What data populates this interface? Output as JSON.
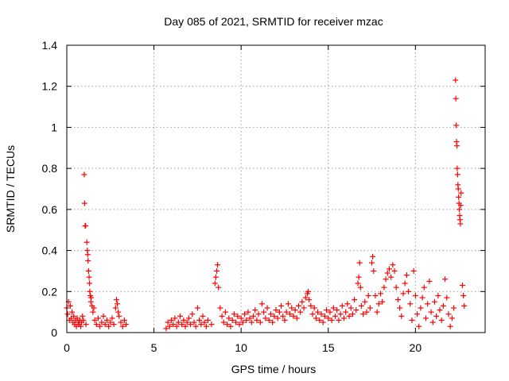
{
  "chart_data": {
    "type": "scatter",
    "title": "Day 085 of 2021, SRMTID for receiver mzac",
    "xlabel": "GPS time / hours",
    "ylabel": "SRMTID / TECUs",
    "xlim": [
      0,
      24
    ],
    "ylim": [
      0,
      1.4
    ],
    "xticks": [
      0,
      5,
      10,
      15,
      20
    ],
    "xtick_labels": [
      "0",
      "5",
      "10",
      "15",
      "20"
    ],
    "yticks": [
      0,
      0.2,
      0.4,
      0.6,
      0.8,
      1.0,
      1.2,
      1.4
    ],
    "ytick_labels": [
      "0",
      "0.2",
      "0.4",
      "0.6",
      "0.8",
      "1",
      "1.2",
      "1.4"
    ],
    "grid": true,
    "marker": "+",
    "colors": {
      "series": "#ff0000",
      "grid": "#a0a0a0",
      "axis": "#000000"
    },
    "series": [
      {
        "name": "SRMTID",
        "points": [
          [
            0.0,
            0.12
          ],
          [
            0.05,
            0.09
          ],
          [
            0.1,
            0.15
          ],
          [
            0.15,
            0.06
          ],
          [
            0.2,
            0.13
          ],
          [
            0.25,
            0.07
          ],
          [
            0.3,
            0.1
          ],
          [
            0.35,
            0.05
          ],
          [
            0.4,
            0.08
          ],
          [
            0.45,
            0.04
          ],
          [
            0.5,
            0.06
          ],
          [
            0.55,
            0.03
          ],
          [
            0.6,
            0.07
          ],
          [
            0.65,
            0.05
          ],
          [
            0.7,
            0.04
          ],
          [
            0.75,
            0.06
          ],
          [
            0.8,
            0.03
          ],
          [
            0.85,
            0.05
          ],
          [
            0.9,
            0.08
          ],
          [
            0.95,
            0.06
          ],
          [
            1.0,
            0.77
          ],
          [
            1.02,
            0.63
          ],
          [
            1.05,
            0.52
          ],
          [
            1.08,
            0.52
          ],
          [
            1.1,
            0.04
          ],
          [
            1.15,
            0.44
          ],
          [
            1.18,
            0.4
          ],
          [
            1.2,
            0.38
          ],
          [
            1.22,
            0.35
          ],
          [
            1.25,
            0.3
          ],
          [
            1.28,
            0.27
          ],
          [
            1.3,
            0.24
          ],
          [
            1.32,
            0.2
          ],
          [
            1.35,
            0.18
          ],
          [
            1.38,
            0.15
          ],
          [
            1.4,
            0.17
          ],
          [
            1.45,
            0.13
          ],
          [
            1.5,
            0.1
          ],
          [
            1.55,
            0.12
          ],
          [
            1.6,
            0.06
          ],
          [
            1.7,
            0.04
          ],
          [
            1.8,
            0.07
          ],
          [
            1.9,
            0.03
          ],
          [
            2.0,
            0.05
          ],
          [
            2.1,
            0.08
          ],
          [
            2.2,
            0.04
          ],
          [
            2.3,
            0.06
          ],
          [
            2.4,
            0.03
          ],
          [
            2.5,
            0.05
          ],
          [
            2.6,
            0.07
          ],
          [
            2.7,
            0.04
          ],
          [
            2.8,
            0.12
          ],
          [
            2.85,
            0.16
          ],
          [
            2.9,
            0.14
          ],
          [
            2.95,
            0.1
          ],
          [
            3.0,
            0.08
          ],
          [
            3.1,
            0.05
          ],
          [
            3.2,
            0.03
          ],
          [
            3.3,
            0.06
          ],
          [
            3.4,
            0.04
          ],
          [
            5.7,
            0.02
          ],
          [
            5.8,
            0.05
          ],
          [
            5.9,
            0.03
          ],
          [
            6.0,
            0.06
          ],
          [
            6.1,
            0.04
          ],
          [
            6.2,
            0.07
          ],
          [
            6.3,
            0.03
          ],
          [
            6.4,
            0.05
          ],
          [
            6.5,
            0.08
          ],
          [
            6.6,
            0.04
          ],
          [
            6.7,
            0.06
          ],
          [
            6.8,
            0.03
          ],
          [
            6.9,
            0.05
          ],
          [
            7.0,
            0.07
          ],
          [
            7.1,
            0.04
          ],
          [
            7.2,
            0.09
          ],
          [
            7.3,
            0.05
          ],
          [
            7.4,
            0.03
          ],
          [
            7.5,
            0.12
          ],
          [
            7.6,
            0.06
          ],
          [
            7.7,
            0.04
          ],
          [
            7.8,
            0.08
          ],
          [
            7.9,
            0.05
          ],
          [
            8.0,
            0.03
          ],
          [
            8.1,
            0.06
          ],
          [
            8.3,
            0.04
          ],
          [
            8.5,
            0.24
          ],
          [
            8.55,
            0.27
          ],
          [
            8.6,
            0.3
          ],
          [
            8.65,
            0.33
          ],
          [
            8.7,
            0.22
          ],
          [
            8.8,
            0.12
          ],
          [
            8.9,
            0.08
          ],
          [
            9.0,
            0.05
          ],
          [
            9.1,
            0.1
          ],
          [
            9.2,
            0.04
          ],
          [
            9.3,
            0.07
          ],
          [
            9.4,
            0.03
          ],
          [
            9.5,
            0.06
          ],
          [
            9.6,
            0.09
          ],
          [
            9.7,
            0.05
          ],
          [
            9.8,
            0.08
          ],
          [
            9.9,
            0.04
          ],
          [
            10.0,
            0.07
          ],
          [
            10.1,
            0.05
          ],
          [
            10.2,
            0.09
          ],
          [
            10.3,
            0.06
          ],
          [
            10.4,
            0.1
          ],
          [
            10.5,
            0.07
          ],
          [
            10.6,
            0.05
          ],
          [
            10.7,
            0.08
          ],
          [
            10.8,
            0.11
          ],
          [
            10.9,
            0.06
          ],
          [
            11.0,
            0.09
          ],
          [
            11.1,
            0.05
          ],
          [
            11.2,
            0.14
          ],
          [
            11.3,
            0.1
          ],
          [
            11.4,
            0.07
          ],
          [
            11.5,
            0.12
          ],
          [
            11.6,
            0.06
          ],
          [
            11.7,
            0.09
          ],
          [
            11.8,
            0.05
          ],
          [
            11.9,
            0.08
          ],
          [
            12.0,
            0.11
          ],
          [
            12.1,
            0.07
          ],
          [
            12.2,
            0.1
          ],
          [
            12.3,
            0.13
          ],
          [
            12.4,
            0.08
          ],
          [
            12.5,
            0.06
          ],
          [
            12.6,
            0.1
          ],
          [
            12.7,
            0.14
          ],
          [
            12.8,
            0.09
          ],
          [
            12.9,
            0.12
          ],
          [
            13.0,
            0.08
          ],
          [
            13.1,
            0.11
          ],
          [
            13.2,
            0.07
          ],
          [
            13.3,
            0.13
          ],
          [
            13.4,
            0.1
          ],
          [
            13.5,
            0.15
          ],
          [
            13.6,
            0.12
          ],
          [
            13.7,
            0.17
          ],
          [
            13.8,
            0.19
          ],
          [
            13.85,
            0.2
          ],
          [
            13.9,
            0.16
          ],
          [
            14.0,
            0.13
          ],
          [
            14.1,
            0.09
          ],
          [
            14.2,
            0.12
          ],
          [
            14.3,
            0.07
          ],
          [
            14.4,
            0.1
          ],
          [
            14.5,
            0.06
          ],
          [
            14.6,
            0.09
          ],
          [
            14.7,
            0.05
          ],
          [
            14.8,
            0.08
          ],
          [
            14.9,
            0.11
          ],
          [
            15.0,
            0.07
          ],
          [
            15.1,
            0.1
          ],
          [
            15.2,
            0.06
          ],
          [
            15.3,
            0.12
          ],
          [
            15.4,
            0.08
          ],
          [
            15.5,
            0.11
          ],
          [
            15.6,
            0.06
          ],
          [
            15.7,
            0.09
          ],
          [
            15.8,
            0.13
          ],
          [
            15.9,
            0.07
          ],
          [
            16.0,
            0.1
          ],
          [
            16.1,
            0.14
          ],
          [
            16.2,
            0.08
          ],
          [
            16.3,
            0.12
          ],
          [
            16.4,
            0.09
          ],
          [
            16.5,
            0.16
          ],
          [
            16.6,
            0.11
          ],
          [
            16.7,
            0.24
          ],
          [
            16.75,
            0.27
          ],
          [
            16.8,
            0.34
          ],
          [
            16.85,
            0.22
          ],
          [
            16.9,
            0.13
          ],
          [
            17.0,
            0.09
          ],
          [
            17.1,
            0.15
          ],
          [
            17.2,
            0.1
          ],
          [
            17.3,
            0.18
          ],
          [
            17.4,
            0.12
          ],
          [
            17.5,
            0.34
          ],
          [
            17.55,
            0.37
          ],
          [
            17.6,
            0.3
          ],
          [
            17.7,
            0.18
          ],
          [
            17.8,
            0.1
          ],
          [
            17.9,
            0.14
          ],
          [
            18.0,
            0.19
          ],
          [
            18.1,
            0.15
          ],
          [
            18.2,
            0.22
          ],
          [
            18.3,
            0.26
          ],
          [
            18.4,
            0.29
          ],
          [
            18.5,
            0.31
          ],
          [
            18.6,
            0.27
          ],
          [
            18.7,
            0.33
          ],
          [
            18.8,
            0.3
          ],
          [
            18.9,
            0.22
          ],
          [
            19.0,
            0.16
          ],
          [
            19.1,
            0.12
          ],
          [
            19.2,
            0.08
          ],
          [
            19.3,
            0.19
          ],
          [
            19.4,
            0.24
          ],
          [
            19.5,
            0.28
          ],
          [
            19.6,
            0.2
          ],
          [
            19.7,
            0.14
          ],
          [
            19.8,
            0.06
          ],
          [
            19.9,
            0.3
          ],
          [
            20.0,
            0.18
          ],
          [
            20.1,
            0.09
          ],
          [
            20.2,
            0.03
          ],
          [
            20.3,
            0.12
          ],
          [
            20.4,
            0.17
          ],
          [
            20.5,
            0.22
          ],
          [
            20.6,
            0.07
          ],
          [
            20.7,
            0.14
          ],
          [
            20.8,
            0.25
          ],
          [
            20.9,
            0.1
          ],
          [
            21.0,
            0.05
          ],
          [
            21.1,
            0.15
          ],
          [
            21.2,
            0.08
          ],
          [
            21.3,
            0.18
          ],
          [
            21.4,
            0.11
          ],
          [
            21.5,
            0.06
          ],
          [
            21.6,
            0.13
          ],
          [
            21.7,
            0.26
          ],
          [
            21.8,
            0.17
          ],
          [
            21.9,
            0.09
          ],
          [
            22.0,
            0.03
          ],
          [
            22.1,
            0.07
          ],
          [
            22.2,
            0.12
          ],
          [
            22.3,
            1.23
          ],
          [
            22.32,
            1.14
          ],
          [
            22.34,
            1.01
          ],
          [
            22.36,
            0.93
          ],
          [
            22.38,
            0.91
          ],
          [
            22.4,
            0.8
          ],
          [
            22.42,
            0.77
          ],
          [
            22.44,
            0.72
          ],
          [
            22.46,
            0.7
          ],
          [
            22.48,
            0.66
          ],
          [
            22.5,
            0.63
          ],
          [
            22.52,
            0.6
          ],
          [
            22.54,
            0.57
          ],
          [
            22.56,
            0.55
          ],
          [
            22.58,
            0.53
          ],
          [
            22.6,
            0.62
          ],
          [
            22.62,
            0.68
          ],
          [
            22.7,
            0.23
          ],
          [
            22.75,
            0.18
          ],
          [
            22.8,
            0.13
          ]
        ]
      }
    ]
  }
}
